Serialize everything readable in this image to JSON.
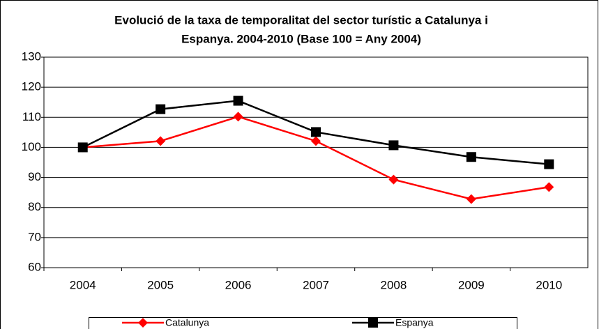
{
  "chart_data": {
    "type": "line",
    "title": [
      "Evolució de la taxa de temporalitat del sector turístic a Catalunya i",
      "Espanya. 2004-2010 (Base 100 = Any 2004)"
    ],
    "categories": [
      "2004",
      "2005",
      "2006",
      "2007",
      "2008",
      "2009",
      "2010"
    ],
    "series": [
      {
        "name": "Catalunya",
        "color": "#ff0000",
        "marker": "diamond",
        "values": [
          100,
          102.1,
          110.2,
          102.1,
          89.3,
          82.8,
          86.8
        ]
      },
      {
        "name": "Espanya",
        "color": "#000000",
        "marker": "square",
        "values": [
          100,
          112.7,
          115.5,
          105.1,
          100.7,
          96.8,
          94.4
        ]
      }
    ],
    "ylim": [
      60,
      130
    ],
    "yticks": [
      60,
      70,
      80,
      90,
      100,
      110,
      120,
      130
    ],
    "grid": true,
    "legend": "bottom"
  }
}
